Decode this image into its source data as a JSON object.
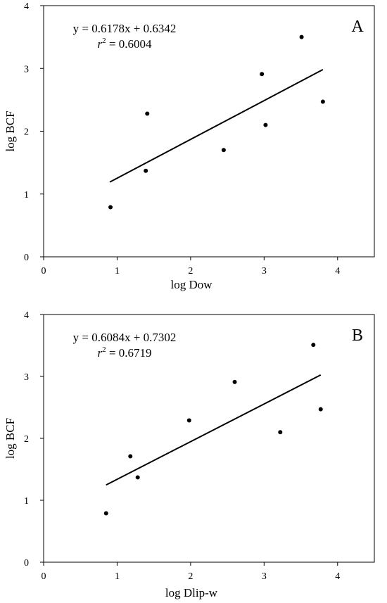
{
  "chart_data": [
    {
      "type": "scatter",
      "panel_label": "A",
      "xlabel": "log Dow",
      "ylabel": "log BCF",
      "xlim": [
        0,
        4.5
      ],
      "ylim": [
        0,
        4
      ],
      "xticks": [
        "0",
        "1",
        "2",
        "3",
        "4"
      ],
      "yticks": [
        "0",
        "1",
        "2",
        "3",
        "4"
      ],
      "equation": "y = 0.6178x + 0.6342",
      "r2_prefix": "r",
      "r2_value": " = 0.6004",
      "grid": false,
      "trendline": {
        "slope": 0.6178,
        "intercept": 0.6342,
        "x_start": 0.9,
        "x_end": 3.8
      },
      "points": [
        {
          "x": 0.91,
          "y": 0.79
        },
        {
          "x": 1.39,
          "y": 1.37
        },
        {
          "x": 1.41,
          "y": 2.28
        },
        {
          "x": 2.45,
          "y": 1.7
        },
        {
          "x": 2.97,
          "y": 2.91
        },
        {
          "x": 3.02,
          "y": 2.1
        },
        {
          "x": 3.51,
          "y": 3.5
        },
        {
          "x": 3.8,
          "y": 2.47
        }
      ]
    },
    {
      "type": "scatter",
      "panel_label": "B",
      "xlabel": "log Dlip-w",
      "ylabel": "log BCF",
      "xlim": [
        0,
        4.5
      ],
      "ylim": [
        0,
        4
      ],
      "xticks": [
        "0",
        "1",
        "2",
        "3",
        "4"
      ],
      "yticks": [
        "0",
        "1",
        "2",
        "3",
        "4"
      ],
      "equation": "y = 0.6084x + 0.7302",
      "r2_prefix": "r",
      "r2_value": " = 0.6719",
      "grid": false,
      "trendline": {
        "slope": 0.6084,
        "intercept": 0.7302,
        "x_start": 0.85,
        "x_end": 3.77
      },
      "points": [
        {
          "x": 0.85,
          "y": 0.79
        },
        {
          "x": 1.18,
          "y": 1.71
        },
        {
          "x": 1.28,
          "y": 1.37
        },
        {
          "x": 1.98,
          "y": 2.29
        },
        {
          "x": 2.6,
          "y": 2.91
        },
        {
          "x": 3.22,
          "y": 2.1
        },
        {
          "x": 3.67,
          "y": 3.51
        },
        {
          "x": 3.77,
          "y": 2.47
        }
      ]
    }
  ]
}
